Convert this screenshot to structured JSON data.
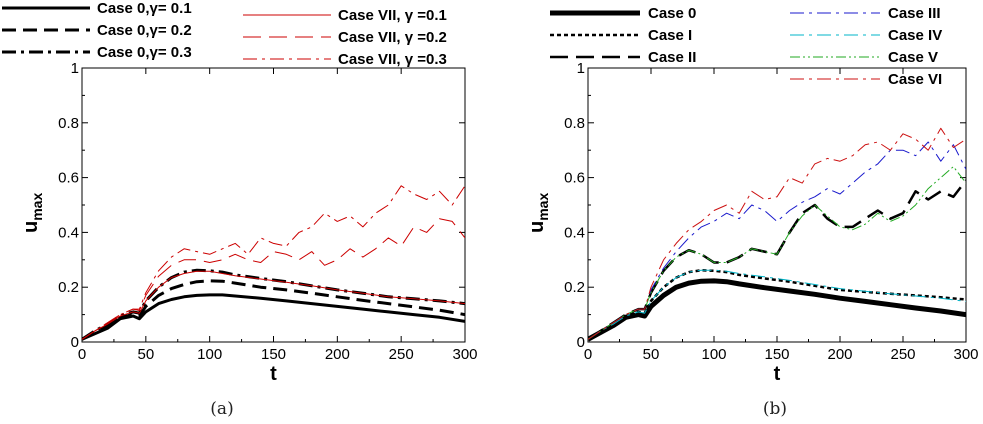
{
  "chart_data": [
    {
      "type": "line",
      "caption": "(a)",
      "xlabel": "t",
      "ylabel": "u",
      "ylabel_sub": "max",
      "xlim": [
        0,
        300
      ],
      "ylim": [
        0,
        1
      ],
      "xticks": [
        "0",
        "50",
        "100",
        "150",
        "200",
        "250",
        "300"
      ],
      "yticks": [
        "0",
        "0.2",
        "0.4",
        "0.6",
        "0.8",
        "1"
      ],
      "grid": false,
      "legend_position": "top",
      "series": [
        {
          "name": "Case 0,γ= 0.1",
          "color": "#000000",
          "dash": "solid",
          "width": 3,
          "x": [
            0,
            10,
            20,
            30,
            40,
            45,
            50,
            60,
            70,
            80,
            90,
            100,
            110,
            120,
            140,
            160,
            180,
            200,
            220,
            240,
            260,
            280,
            300
          ],
          "y": [
            0.01,
            0.03,
            0.05,
            0.085,
            0.095,
            0.085,
            0.11,
            0.14,
            0.155,
            0.165,
            0.17,
            0.172,
            0.172,
            0.168,
            0.16,
            0.15,
            0.14,
            0.13,
            0.12,
            0.11,
            0.1,
            0.09,
            0.075
          ]
        },
        {
          "name": "Case 0,γ= 0.2",
          "color": "#000000",
          "dash": "dashed",
          "width": 3,
          "x": [
            0,
            10,
            20,
            30,
            40,
            45,
            50,
            60,
            70,
            80,
            90,
            100,
            110,
            120,
            140,
            160,
            180,
            200,
            220,
            240,
            260,
            280,
            300
          ],
          "y": [
            0.01,
            0.035,
            0.06,
            0.09,
            0.1,
            0.095,
            0.13,
            0.17,
            0.195,
            0.21,
            0.22,
            0.223,
            0.222,
            0.215,
            0.2,
            0.19,
            0.178,
            0.165,
            0.152,
            0.14,
            0.128,
            0.116,
            0.1
          ]
        },
        {
          "name": "Case 0,γ= 0.3",
          "color": "#000000",
          "dash": "dashdot",
          "width": 3,
          "x": [
            0,
            10,
            20,
            30,
            40,
            45,
            50,
            60,
            70,
            80,
            90,
            100,
            110,
            120,
            140,
            160,
            180,
            200,
            220,
            240,
            260,
            280,
            300
          ],
          "y": [
            0.01,
            0.04,
            0.065,
            0.095,
            0.11,
            0.105,
            0.15,
            0.2,
            0.235,
            0.255,
            0.262,
            0.26,
            0.255,
            0.245,
            0.232,
            0.22,
            0.205,
            0.19,
            0.178,
            0.165,
            0.158,
            0.15,
            0.14
          ]
        },
        {
          "name": "Case VII, γ =0.1",
          "color": "#cc0000",
          "dash": "solid",
          "width": 1,
          "x": [
            0,
            10,
            20,
            30,
            40,
            45,
            50,
            60,
            70,
            80,
            90,
            100,
            110,
            120,
            140,
            160,
            180,
            200,
            220,
            240,
            260,
            280,
            300
          ],
          "y": [
            0.01,
            0.04,
            0.065,
            0.095,
            0.11,
            0.105,
            0.15,
            0.2,
            0.235,
            0.25,
            0.258,
            0.258,
            0.25,
            0.242,
            0.23,
            0.218,
            0.205,
            0.19,
            0.178,
            0.165,
            0.158,
            0.15,
            0.14
          ]
        },
        {
          "name": "Case VII, γ =0.2",
          "color": "#cc0000",
          "dash": "longdash",
          "width": 1,
          "x": [
            0,
            10,
            20,
            30,
            40,
            45,
            50,
            60,
            70,
            80,
            90,
            100,
            110,
            120,
            130,
            140,
            150,
            160,
            170,
            180,
            190,
            200,
            210,
            220,
            230,
            240,
            250,
            260,
            270,
            280,
            290,
            300
          ],
          "y": [
            0.01,
            0.04,
            0.07,
            0.1,
            0.12,
            0.115,
            0.17,
            0.24,
            0.28,
            0.3,
            0.3,
            0.29,
            0.3,
            0.32,
            0.3,
            0.29,
            0.33,
            0.32,
            0.3,
            0.33,
            0.28,
            0.3,
            0.34,
            0.31,
            0.34,
            0.38,
            0.35,
            0.42,
            0.4,
            0.45,
            0.44,
            0.38
          ]
        },
        {
          "name": "Case VII, γ =0.3",
          "color": "#cc0000",
          "dash": "dashdot",
          "width": 1,
          "x": [
            0,
            10,
            20,
            30,
            40,
            45,
            50,
            60,
            70,
            80,
            90,
            100,
            110,
            120,
            130,
            140,
            150,
            160,
            170,
            180,
            190,
            200,
            210,
            220,
            230,
            240,
            250,
            260,
            270,
            280,
            290,
            300
          ],
          "y": [
            0.01,
            0.04,
            0.07,
            0.1,
            0.12,
            0.12,
            0.18,
            0.26,
            0.31,
            0.34,
            0.33,
            0.32,
            0.34,
            0.36,
            0.32,
            0.38,
            0.36,
            0.35,
            0.4,
            0.42,
            0.47,
            0.44,
            0.46,
            0.42,
            0.47,
            0.5,
            0.57,
            0.54,
            0.52,
            0.55,
            0.5,
            0.57
          ]
        }
      ]
    },
    {
      "type": "line",
      "caption": "(b)",
      "xlabel": "t",
      "ylabel": "u",
      "ylabel_sub": "max",
      "xlim": [
        0,
        300
      ],
      "ylim": [
        0,
        1
      ],
      "xticks": [
        "0",
        "50",
        "100",
        "150",
        "200",
        "250",
        "300"
      ],
      "yticks": [
        "0",
        "0.2",
        "0.4",
        "0.6",
        "0.8",
        "1"
      ],
      "grid": false,
      "legend_position": "top",
      "series": [
        {
          "name": "Case 0",
          "color": "#000000",
          "dash": "solid",
          "width": 5,
          "x": [
            0,
            10,
            20,
            30,
            40,
            45,
            50,
            60,
            70,
            80,
            90,
            100,
            110,
            120,
            140,
            160,
            180,
            200,
            220,
            240,
            260,
            280,
            300
          ],
          "y": [
            0.01,
            0.035,
            0.06,
            0.09,
            0.1,
            0.095,
            0.13,
            0.17,
            0.2,
            0.215,
            0.222,
            0.223,
            0.22,
            0.212,
            0.198,
            0.186,
            0.174,
            0.16,
            0.148,
            0.136,
            0.124,
            0.113,
            0.1
          ]
        },
        {
          "name": "Case I",
          "color": "#000000",
          "dash": "dotted",
          "width": 2.5,
          "x": [
            0,
            10,
            20,
            30,
            40,
            45,
            50,
            60,
            70,
            80,
            90,
            100,
            110,
            120,
            140,
            160,
            180,
            200,
            220,
            240,
            260,
            280,
            300
          ],
          "y": [
            0.01,
            0.04,
            0.065,
            0.095,
            0.11,
            0.105,
            0.15,
            0.2,
            0.235,
            0.255,
            0.262,
            0.26,
            0.255,
            0.245,
            0.232,
            0.22,
            0.205,
            0.19,
            0.183,
            0.176,
            0.17,
            0.163,
            0.155
          ]
        },
        {
          "name": "Case II",
          "color": "#000000",
          "dash": "longdash",
          "width": 2.5,
          "x": [
            0,
            10,
            20,
            30,
            40,
            45,
            50,
            60,
            70,
            80,
            90,
            100,
            110,
            120,
            130,
            140,
            150,
            160,
            170,
            180,
            190,
            200,
            210,
            220,
            230,
            240,
            250,
            260,
            270,
            280,
            290,
            300
          ],
          "y": [
            0.01,
            0.04,
            0.07,
            0.1,
            0.12,
            0.12,
            0.18,
            0.26,
            0.31,
            0.335,
            0.32,
            0.29,
            0.29,
            0.31,
            0.34,
            0.33,
            0.32,
            0.4,
            0.47,
            0.5,
            0.45,
            0.42,
            0.42,
            0.45,
            0.48,
            0.45,
            0.47,
            0.55,
            0.52,
            0.55,
            0.53,
            0.59
          ]
        },
        {
          "name": "Case III",
          "color": "#1a1acc",
          "dash": "dashdot",
          "width": 1,
          "x": [
            0,
            10,
            20,
            30,
            40,
            45,
            50,
            60,
            70,
            80,
            90,
            100,
            110,
            120,
            130,
            140,
            150,
            160,
            170,
            180,
            190,
            200,
            210,
            220,
            230,
            240,
            250,
            260,
            270,
            280,
            290,
            300
          ],
          "y": [
            0.01,
            0.04,
            0.07,
            0.1,
            0.12,
            0.12,
            0.19,
            0.27,
            0.33,
            0.38,
            0.42,
            0.44,
            0.47,
            0.45,
            0.5,
            0.48,
            0.44,
            0.48,
            0.51,
            0.53,
            0.56,
            0.54,
            0.58,
            0.62,
            0.65,
            0.7,
            0.7,
            0.68,
            0.73,
            0.66,
            0.72,
            0.63
          ]
        },
        {
          "name": "Case IV",
          "color": "#00b4c8",
          "dash": "dashdot",
          "width": 1,
          "x": [
            0,
            10,
            20,
            30,
            40,
            45,
            50,
            60,
            70,
            80,
            90,
            100,
            110,
            120,
            140,
            160,
            180,
            200,
            220,
            240,
            260,
            280,
            300
          ],
          "y": [
            0.01,
            0.04,
            0.065,
            0.095,
            0.11,
            0.105,
            0.15,
            0.2,
            0.235,
            0.255,
            0.262,
            0.262,
            0.258,
            0.25,
            0.238,
            0.225,
            0.21,
            0.195,
            0.185,
            0.176,
            0.168,
            0.16,
            0.148
          ]
        },
        {
          "name": "Case V",
          "color": "#22aa22",
          "dash": "dashdotdot",
          "width": 1,
          "x": [
            0,
            10,
            20,
            30,
            40,
            45,
            50,
            60,
            70,
            80,
            90,
            100,
            110,
            120,
            130,
            140,
            150,
            160,
            170,
            180,
            190,
            200,
            210,
            220,
            230,
            240,
            250,
            260,
            270,
            280,
            290,
            300
          ],
          "y": [
            0.01,
            0.04,
            0.07,
            0.1,
            0.12,
            0.12,
            0.18,
            0.26,
            0.31,
            0.335,
            0.32,
            0.29,
            0.29,
            0.31,
            0.34,
            0.33,
            0.32,
            0.4,
            0.46,
            0.5,
            0.46,
            0.42,
            0.41,
            0.43,
            0.47,
            0.44,
            0.46,
            0.5,
            0.56,
            0.6,
            0.64,
            0.58
          ]
        },
        {
          "name": "Case VI",
          "color": "#cc1111",
          "dash": "dashdot",
          "width": 1,
          "x": [
            0,
            10,
            20,
            30,
            40,
            45,
            50,
            60,
            70,
            80,
            90,
            100,
            110,
            120,
            130,
            140,
            150,
            160,
            170,
            180,
            190,
            200,
            210,
            220,
            230,
            240,
            250,
            260,
            270,
            280,
            290,
            300
          ],
          "y": [
            0.01,
            0.04,
            0.07,
            0.1,
            0.12,
            0.12,
            0.2,
            0.3,
            0.36,
            0.41,
            0.44,
            0.48,
            0.5,
            0.47,
            0.55,
            0.52,
            0.53,
            0.6,
            0.58,
            0.65,
            0.67,
            0.66,
            0.68,
            0.72,
            0.73,
            0.7,
            0.76,
            0.74,
            0.7,
            0.78,
            0.71,
            0.74
          ]
        }
      ]
    }
  ]
}
